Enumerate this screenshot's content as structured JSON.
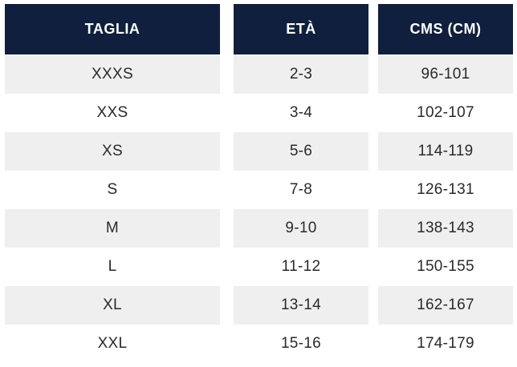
{
  "table": {
    "headers": [
      "TAGLIA",
      "ETÀ",
      "CMS (CM)"
    ],
    "rows": [
      [
        "XXXS",
        "2-3",
        "96-101"
      ],
      [
        "XXS",
        "3-4",
        "102-107"
      ],
      [
        "XS",
        "5-6",
        "114-119"
      ],
      [
        "S",
        "7-8",
        "126-131"
      ],
      [
        "M",
        "9-10",
        "138-143"
      ],
      [
        "L",
        "11-12",
        "150-155"
      ],
      [
        "XL",
        "13-14",
        "162-167"
      ],
      [
        "XXL",
        "15-16",
        "174-179"
      ]
    ]
  },
  "colors": {
    "header_background": "#0f1f3d",
    "header_text": "#ffffff",
    "shaded_row": "#efefef",
    "body_text": "#2a2a2a"
  }
}
